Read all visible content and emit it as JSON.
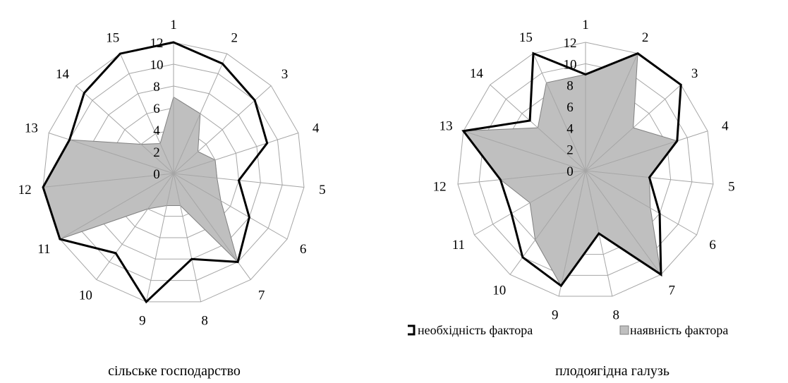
{
  "colors": {
    "need_stroke": "#000000",
    "have_fill": "#bfbfbf",
    "have_stroke": "#808080",
    "grid": "#a6a6a6"
  },
  "legend": {
    "need_label": "необхідність фактора",
    "have_label": "наявність фактора",
    "placement": "bottom-right"
  },
  "chart_data": [
    {
      "type": "radar",
      "caption": "сільське господарство",
      "categories": [
        "1",
        "2",
        "3",
        "4",
        "5",
        "6",
        "7",
        "8",
        "9",
        "10",
        "11",
        "12",
        "13",
        "14",
        "15"
      ],
      "r_ticks": [
        "0",
        "2",
        "4",
        "6",
        "8",
        "10",
        "12"
      ],
      "rlim": [
        0,
        12
      ],
      "grid": true,
      "series": [
        {
          "name": "необхідність фактора",
          "values": [
            12,
            11,
            10,
            9,
            6,
            8,
            10,
            8,
            12,
            9,
            12,
            12,
            10,
            11,
            12
          ]
        },
        {
          "name": "наявність фактора",
          "values": [
            7,
            6,
            3,
            4,
            4,
            5,
            10,
            3,
            3,
            4,
            12,
            12,
            10,
            4,
            3
          ]
        }
      ]
    },
    {
      "type": "radar",
      "caption": "плодоягідна галузь",
      "categories": [
        "1",
        "2",
        "3",
        "4",
        "5",
        "6",
        "7",
        "8",
        "9",
        "10",
        "11",
        "12",
        "13",
        "14",
        "15"
      ],
      "r_ticks": [
        "0",
        "2",
        "4",
        "6",
        "8",
        "10",
        "12"
      ],
      "rlim": [
        0,
        12
      ],
      "grid": true,
      "series": [
        {
          "name": "необхідність фактора",
          "values": [
            9,
            12,
            12,
            9,
            6,
            8,
            12,
            6,
            11,
            10,
            8,
            8,
            12,
            7,
            12
          ]
        },
        {
          "name": "наявність фактора",
          "values": [
            9,
            12,
            6,
            9,
            6,
            7,
            12,
            6,
            11,
            8,
            6,
            8,
            12,
            6,
            9
          ]
        }
      ]
    }
  ]
}
